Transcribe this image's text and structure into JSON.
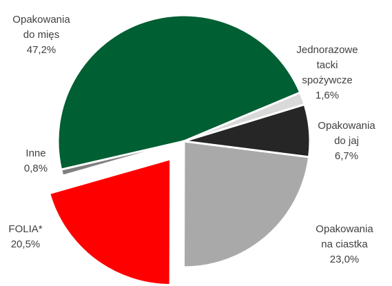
{
  "chart_data": {
    "type": "pie",
    "categories": [
      "Opakowania\ndo mięs",
      "Jednorazowe tacki\nspożywcze",
      "Opakowania\ndo jaj",
      "Opakowania\nna ciastka",
      "FOLIA*",
      "Inne"
    ],
    "values": [
      47.2,
      1.6,
      6.7,
      23.0,
      20.5,
      0.8
    ],
    "value_labels": [
      "47,2%",
      "1,6%",
      "6,7%",
      "23,0%",
      "20,5%",
      "0,8%"
    ],
    "colors": [
      "#005f33",
      "#d9d9d9",
      "#262626",
      "#aaa9a9",
      "#ff0000",
      "#7f7f7f"
    ]
  }
}
